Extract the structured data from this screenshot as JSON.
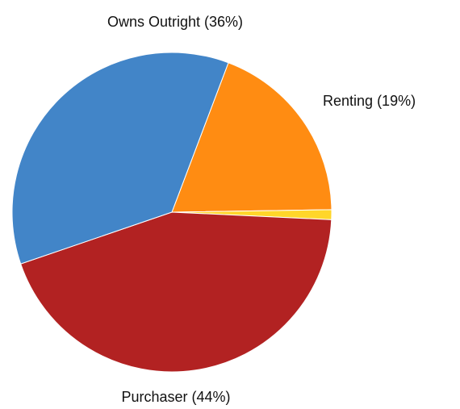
{
  "chart_data": {
    "type": "pie",
    "categories": [
      "Renting",
      null,
      "Purchaser",
      "Owns Outright"
    ],
    "values": [
      19,
      1,
      44,
      36
    ],
    "value_labels": [
      "(19%)",
      null,
      "(44%)",
      "(36%)"
    ],
    "colors": [
      "#ff8c12",
      "#ffd62a",
      "#b22222",
      "#4285c8"
    ]
  }
}
